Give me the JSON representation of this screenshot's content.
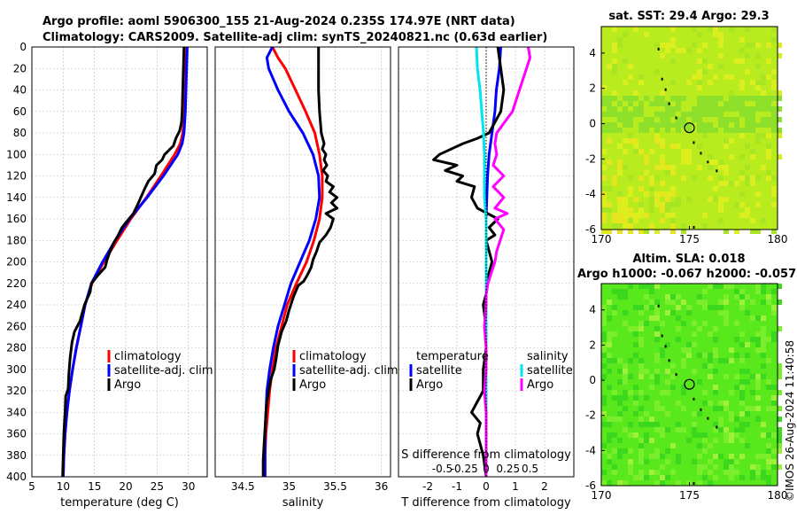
{
  "titles": {
    "line1": "Argo profile: aoml 5906300_155 21-Aug-2024 0.235S 174.97E (NRT data)",
    "line2": "Climatology: CARS2009. Satellite-adj clim: synTS_20240821.nc (0.63d earlier)",
    "map1_title": "sat. SST: 29.4 Argo: 29.3",
    "map2_title1": "Altim. SLA: 0.018",
    "map2_title2": "Argo h1000: -0.067 h2000: -0.057",
    "watermark": "©IMOS 26-Aug-2024 11:40:58"
  },
  "colors": {
    "climatology": "#ff0000",
    "satellite": "#0000ff",
    "argo": "#000000",
    "sal_diff_sat": "#00e5ee",
    "sal_diff_argo": "#ff00ff",
    "map1_base": "#b9ec1e",
    "map2_base": "#58e81c"
  },
  "legend_labels": {
    "climatology": "climatology",
    "satellite_adj": "satellite-adj. clim",
    "argo": "Argo",
    "temperature": "temperature",
    "salinity": "salinity",
    "satellite": "satellite"
  },
  "chart_data": [
    {
      "type": "line",
      "id": "temperature",
      "xlabel": "temperature (deg C)",
      "ylabel": "",
      "xlim": [
        5,
        33
      ],
      "ylim": [
        400,
        0
      ],
      "xticks": [
        "5",
        "10",
        "15",
        "20",
        "25",
        "30"
      ],
      "yticks": [
        "0",
        "20",
        "40",
        "60",
        "80",
        "100",
        "120",
        "140",
        "160",
        "180",
        "200",
        "220",
        "240",
        "260",
        "280",
        "300",
        "320",
        "340",
        "360",
        "380",
        "400"
      ],
      "grid": true,
      "legend_position": "lower-right",
      "series": [
        {
          "name": "climatology",
          "color": "#ff0000",
          "depth": [
            0,
            20,
            40,
            60,
            80,
            90,
            100,
            120,
            140,
            160,
            180,
            200,
            220,
            240,
            260,
            280,
            300,
            320,
            340,
            360,
            380,
            400
          ],
          "values": [
            29.7,
            29.6,
            29.5,
            29.4,
            29.1,
            28.7,
            27.8,
            25.6,
            23.3,
            20.8,
            18.6,
            16.5,
            14.6,
            13.5,
            12.8,
            12.1,
            11.5,
            11.0,
            10.6,
            10.3,
            10.1,
            10.0
          ]
        },
        {
          "name": "satellite-adj. clim",
          "color": "#0000ff",
          "depth": [
            0,
            20,
            40,
            60,
            80,
            90,
            100,
            120,
            140,
            160,
            180,
            200,
            220,
            240,
            260,
            280,
            300,
            320,
            340,
            360,
            380,
            400
          ],
          "values": [
            29.8,
            29.7,
            29.6,
            29.5,
            29.3,
            29.0,
            28.3,
            26.0,
            23.4,
            20.6,
            18.3,
            16.3,
            14.5,
            13.5,
            12.8,
            12.1,
            11.5,
            11.0,
            10.6,
            10.3,
            10.1,
            10.0
          ]
        },
        {
          "name": "Argo",
          "color": "#000000",
          "depth": [
            0,
            20,
            40,
            60,
            70,
            78,
            85,
            92,
            100,
            105,
            110,
            118,
            125,
            132,
            140,
            148,
            155,
            160,
            168,
            175,
            182,
            190,
            198,
            205,
            212,
            220,
            228,
            240,
            255,
            265,
            275,
            290,
            305,
            318,
            325,
            340,
            360,
            380,
            400
          ],
          "values": [
            29.3,
            29.2,
            29.1,
            29.0,
            28.9,
            28.6,
            28.0,
            27.6,
            26.2,
            25.8,
            24.9,
            24.6,
            23.6,
            23.0,
            22.4,
            21.8,
            21.2,
            20.5,
            19.4,
            18.8,
            18.1,
            17.5,
            17.0,
            16.7,
            15.6,
            14.5,
            14.3,
            13.4,
            12.7,
            11.8,
            11.4,
            11.1,
            10.9,
            10.8,
            10.4,
            10.3,
            10.1,
            10.0,
            9.9
          ]
        }
      ]
    },
    {
      "type": "line",
      "id": "salinity",
      "xlabel": "salinity",
      "xlim": [
        34.2,
        36.1
      ],
      "ylim": [
        400,
        0
      ],
      "xticks": [
        "34.5",
        "35",
        "35.5",
        "36"
      ],
      "grid": true,
      "legend_position": "lower-right",
      "series": [
        {
          "name": "climatology",
          "color": "#ff0000",
          "depth": [
            0,
            10,
            20,
            40,
            60,
            80,
            100,
            120,
            140,
            160,
            180,
            200,
            220,
            240,
            260,
            280,
            300,
            320,
            340,
            360,
            380,
            400
          ],
          "values": [
            34.82,
            34.88,
            34.96,
            35.07,
            35.18,
            35.28,
            35.33,
            35.36,
            35.36,
            35.33,
            35.27,
            35.19,
            35.08,
            34.98,
            34.92,
            34.86,
            34.82,
            34.79,
            34.77,
            34.75,
            34.74,
            34.74
          ]
        },
        {
          "name": "satellite-adj. clim",
          "color": "#0000ff",
          "depth": [
            0,
            5,
            10,
            20,
            40,
            60,
            80,
            100,
            120,
            140,
            160,
            180,
            200,
            220,
            240,
            260,
            280,
            300,
            320,
            340,
            360,
            380,
            400
          ],
          "values": [
            34.82,
            34.79,
            34.76,
            34.78,
            34.88,
            35.0,
            35.15,
            35.26,
            35.32,
            35.33,
            35.29,
            35.22,
            35.12,
            35.02,
            34.95,
            34.88,
            34.83,
            34.79,
            34.76,
            34.75,
            34.74,
            34.74,
            34.74
          ]
        },
        {
          "name": "Argo",
          "color": "#000000",
          "depth": [
            0,
            20,
            40,
            60,
            80,
            90,
            95,
            100,
            105,
            110,
            115,
            120,
            125,
            130,
            135,
            140,
            145,
            150,
            155,
            160,
            168,
            175,
            182,
            190,
            198,
            205,
            212,
            218,
            222,
            232,
            245,
            255,
            265,
            278,
            290,
            300,
            310,
            320,
            330,
            340,
            355,
            370,
            385,
            400
          ],
          "values": [
            35.32,
            35.32,
            35.32,
            35.33,
            35.35,
            35.38,
            35.36,
            35.4,
            35.38,
            35.41,
            35.37,
            35.42,
            35.4,
            35.48,
            35.44,
            35.52,
            35.46,
            35.52,
            35.4,
            35.48,
            35.45,
            35.4,
            35.33,
            35.3,
            35.26,
            35.24,
            35.2,
            35.16,
            35.1,
            35.05,
            35.0,
            34.97,
            34.92,
            34.88,
            34.86,
            34.84,
            34.8,
            34.78,
            34.76,
            34.75,
            34.74,
            34.73,
            34.72,
            34.72
          ]
        }
      ]
    },
    {
      "type": "line",
      "id": "differences",
      "xlabel": "T difference from climatology",
      "x2label": "S difference from climatology",
      "xlim": [
        -3,
        3
      ],
      "x2lim": [
        -1.0,
        1.0
      ],
      "ylim": [
        400,
        0
      ],
      "xticks": [
        "-2",
        "-1",
        "0",
        "1",
        "2"
      ],
      "x2ticks": [
        "-0.5",
        "-0.25",
        "0",
        "0.25",
        "0.5"
      ],
      "grid": true,
      "legend_position": "lower",
      "series": [
        {
          "name": "temperature satellite",
          "color": "#0000ff",
          "axis": "T",
          "depth": [
            0,
            20,
            40,
            60,
            80,
            100,
            120,
            140,
            160,
            180,
            200,
            220,
            240,
            260,
            280,
            300,
            320,
            340,
            360,
            380,
            400
          ],
          "values": [
            0.5,
            0.45,
            0.35,
            0.3,
            0.2,
            0.1,
            0.05,
            0.02,
            0.0,
            0.0,
            0.0,
            0.0,
            0.0,
            0.0,
            0.0,
            0.0,
            0.0,
            0.0,
            0.0,
            0.0,
            0.0
          ]
        },
        {
          "name": "temperature Argo",
          "color": "#000000",
          "axis": "T",
          "depth": [
            0,
            20,
            40,
            60,
            80,
            85,
            90,
            95,
            100,
            105,
            110,
            115,
            120,
            125,
            130,
            140,
            150,
            160,
            168,
            175,
            180,
            190,
            200,
            210,
            220,
            230,
            240,
            260,
            280,
            300,
            320,
            330,
            340,
            350,
            360,
            380,
            400
          ],
          "values": [
            0.4,
            0.5,
            0.6,
            0.5,
            0.1,
            -0.3,
            -0.8,
            -1.2,
            -1.6,
            -1.8,
            -1.0,
            -1.4,
            -0.8,
            -1.0,
            -0.4,
            -0.5,
            -0.3,
            0.4,
            0.1,
            0.3,
            0.0,
            0.1,
            0.2,
            0.1,
            0.0,
            0.0,
            -0.1,
            0.0,
            0.0,
            -0.1,
            -0.1,
            -0.3,
            -0.5,
            -0.2,
            -0.3,
            -0.1,
            0.0
          ]
        },
        {
          "name": "salinity satellite",
          "color": "#00e5ee",
          "axis": "S",
          "depth": [
            0,
            20,
            40,
            60,
            80,
            100,
            120,
            140,
            160,
            180,
            200,
            220,
            240,
            260,
            280,
            300,
            320,
            340,
            360,
            380,
            400
          ],
          "values": [
            -0.11,
            -0.1,
            -0.07,
            -0.05,
            -0.03,
            -0.02,
            -0.02,
            -0.02,
            0.0,
            0.0,
            0.0,
            0.0,
            0.0,
            0.0,
            0.0,
            0.0,
            0.0,
            0.0,
            0.0,
            0.0,
            0.0
          ]
        },
        {
          "name": "salinity Argo",
          "color": "#ff00ff",
          "axis": "S",
          "depth": [
            0,
            10,
            20,
            40,
            60,
            80,
            90,
            100,
            110,
            120,
            130,
            140,
            150,
            155,
            160,
            170,
            180,
            190,
            200,
            210,
            220,
            230,
            240,
            260,
            280,
            300,
            320,
            340,
            360,
            380,
            400
          ],
          "values": [
            0.48,
            0.5,
            0.46,
            0.38,
            0.3,
            0.12,
            0.1,
            0.12,
            0.08,
            0.2,
            0.08,
            0.2,
            0.1,
            0.24,
            0.1,
            0.2,
            0.16,
            0.12,
            0.1,
            0.06,
            0.02,
            0.0,
            0.0,
            -0.02,
            0.0,
            0.0,
            -0.02,
            0.0,
            0.0,
            0.0,
            0.0
          ]
        }
      ]
    },
    {
      "type": "heatmap",
      "id": "sst_map",
      "title": "sat. SST: 29.4 Argo: 29.3",
      "xlim": [
        170,
        180
      ],
      "ylim": [
        -6,
        5.5
      ],
      "xticks": [
        "170",
        "175",
        "180"
      ],
      "yticks": [
        "4",
        "2",
        "0",
        "-2",
        "-4",
        "-6"
      ],
      "argo_position": [
        175.0,
        -0.235
      ]
    },
    {
      "type": "heatmap",
      "id": "sla_map",
      "title": "Altim. SLA: 0.018",
      "xlim": [
        170,
        180
      ],
      "ylim": [
        -6,
        5.5
      ],
      "xticks": [
        "170",
        "175",
        "180"
      ],
      "yticks": [
        "4",
        "2",
        "0",
        "-2",
        "-4",
        "-6"
      ],
      "argo_position": [
        175.0,
        -0.235
      ]
    }
  ]
}
